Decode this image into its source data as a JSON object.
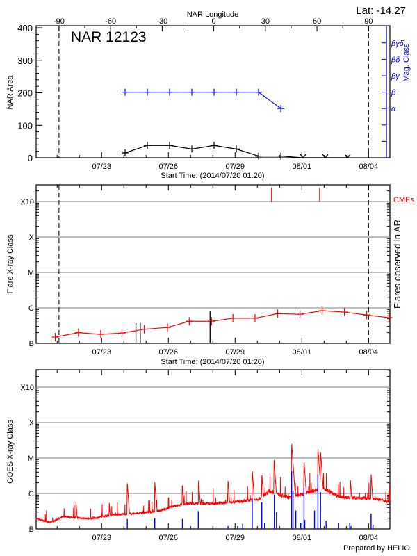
{
  "footer": {
    "prepared_by": "Prepared by HELIO"
  },
  "colors": {
    "area": "#000000",
    "mag_class": "#0000ff",
    "flare_line": "#ff0000",
    "goes_flux": "#ff0000",
    "flare_bars": "#0000ff",
    "cme": "#ff0000",
    "grid": "#999999",
    "flares_ar": "#000000"
  },
  "chart_data": [
    {
      "type": "line",
      "title": "NAR 12123",
      "lat_label": "Lat: -14.27",
      "top_axis": {
        "label": "NAR Longitude",
        "ticks": [
          "-90",
          "-60",
          "-30",
          "0",
          "30",
          "60",
          "90"
        ],
        "range": [
          -90,
          90
        ]
      },
      "limb_lines": {
        "east": "07/21 02:00",
        "west": "08/04 00:00",
        "style": "dashed"
      },
      "xlabel": "Start Time: (2014/07/20 01:20)",
      "xlim": [
        "07/20 01:20",
        "08/04 23:00"
      ],
      "xticks": [
        "07/23",
        "07/26",
        "07/29",
        "08/01",
        "08/04"
      ],
      "ylabel": "NAR Area",
      "ylim": [
        0,
        400
      ],
      "yticks": [
        "0",
        "100",
        "200",
        "300",
        "400"
      ],
      "y2label": "Mag. Class",
      "y2_levels": [
        "",
        "",
        "α",
        "β",
        "βγ",
        "βδ",
        "βγδ"
      ],
      "area": {
        "x": [
          "07/24 01:20",
          "07/25 01:20",
          "07/26 01:20",
          "07/27 01:20",
          "07/28 01:20",
          "07/29 01:20",
          "07/30 01:20",
          "07/31 01:20",
          "08/01 01:20",
          "08/02 01:20",
          "08/03 01:20"
        ],
        "y": [
          15,
          38,
          38,
          27,
          38,
          27,
          5,
          5,
          0,
          0,
          0
        ]
      },
      "mag_class": {
        "x": [
          "07/24 01:20",
          "07/25 01:20",
          "07/26 01:20",
          "07/27 01:20",
          "07/28 01:20",
          "07/29 01:20",
          "07/30 01:20",
          "07/31 01:20"
        ],
        "y": [
          "β",
          "β",
          "β",
          "β",
          "β",
          "β",
          "β",
          "α"
        ]
      }
    },
    {
      "type": "line",
      "xlabel": "Start Time: (2014/07/20 01:20)",
      "xlim": [
        "07/20 01:20",
        "08/04 23:00"
      ],
      "xticks": [
        "07/23",
        "07/26",
        "07/29",
        "08/01",
        "08/04"
      ],
      "ylabel": "Flare X-ray Class",
      "y2label": "Flares observed in AR",
      "cme_label": "CMEs",
      "yscale": "log",
      "ylim": [
        1e-07,
        0.0032
      ],
      "yticks": [
        "B",
        "C",
        "M",
        "X",
        "X10"
      ],
      "grid": true,
      "limb_lines": {
        "east": "07/21 02:00",
        "west": "08/04 00:00",
        "style": "dashed"
      },
      "flare_line": {
        "x": [
          "07/20 22:00",
          "07/21 23:00",
          "07/22 23:00",
          "07/23 22:00",
          "07/24 22:00",
          "07/25 23:00",
          "07/26 22:30",
          "07/27 22:30",
          "07/28 21:40",
          "07/29 21:30",
          "07/30 22:00",
          "07/31 22:00",
          "08/01 22:00",
          "08/02 22:00",
          "08/03 22:00",
          "08/04 22:00"
        ],
        "y": [
          1.5e-07,
          2e-07,
          1.8e-07,
          1.95e-07,
          2.5e-07,
          2.8e-07,
          4.2e-07,
          4.2e-07,
          5.1e-07,
          5.1e-07,
          6.9e-07,
          6.6e-07,
          8.3e-07,
          7.6e-07,
          6.3e-07,
          5.3e-07
        ]
      },
      "flares_in_ar": {
        "x": [
          "07/24 13:00",
          "07/24 17:40",
          "07/27 21:00"
        ],
        "y": [
          3.7e-07,
          3.8e-07,
          7.9e-07
        ]
      },
      "cmes": {
        "x": [
          "07/30 15:20",
          "08/01 19:10"
        ]
      }
    },
    {
      "type": "line",
      "ylabel": "GOES X-ray Class",
      "xlim": [
        "07/20 01:20",
        "08/04 23:00"
      ],
      "xticks": [
        "07/23",
        "07/26",
        "07/29",
        "08/01",
        "08/04"
      ],
      "yscale": "log",
      "ylim": [
        1e-07,
        0.0032
      ],
      "yticks": [
        "B",
        "C",
        "M",
        "X",
        "X10"
      ],
      "grid": true,
      "goes_background": {
        "x": [
          "07/20 01:20",
          "07/20 17:00",
          "07/21 07:00",
          "07/22 12:00",
          "07/23 14:00",
          "07/24 07:00",
          "07/25 12:30",
          "07/26 05:30",
          "07/26 22:30",
          "07/28 04:00",
          "07/29 08:00",
          "07/30 02:00",
          "07/30 13:00",
          "07/31 06:00",
          "07/31 12:00",
          "08/01 08:00",
          "08/01 23:00",
          "08/02 16:00",
          "08/03 03:30",
          "08/04 08:40",
          "08/04 23:00"
        ],
        "y": [
          1.9e-07,
          1.5e-07,
          2.2e-07,
          1.9e-07,
          2.5e-07,
          2.6e-07,
          3.1e-07,
          4.3e-07,
          5.1e-07,
          5.1e-07,
          5.9e-07,
          6.9e-07,
          1.15e-06,
          7.9e-07,
          7.4e-07,
          1.07e-06,
          1.38e-06,
          7.9e-07,
          7.4e-07,
          6.9e-07,
          5.6e-07
        ]
      },
      "goes_peaks": {
        "x": [
          "07/21 20:20",
          "07/23 08:10",
          "07/24 03:40",
          "07/25 09:20",
          "07/26 15:00",
          "07/27 08:30",
          "07/28 16:20",
          "07/29 18:30",
          "07/30 04:50",
          "07/30 18:00",
          "07/31 13:00",
          "08/01 02:20",
          "08/01 17:20",
          "08/01 20:10",
          "08/03 04:20",
          "08/04 02:40"
        ],
        "y": [
          6e-07,
          5.8e-07,
          2.1e-06,
          2.2e-06,
          1.9e-06,
          2.6e-06,
          2.5e-06,
          4.7e-06,
          3.7e-06,
          9.1e-06,
          2.6e-05,
          8.7e-06,
          2e-05,
          1.6e-05,
          2.5e-06,
          3.5e-06
        ]
      },
      "flare_bars": {
        "x": [
          "07/24 03:40",
          "07/25 09:20",
          "07/26 15:10",
          "07/27 08:20",
          "07/28 16:20",
          "07/29 02:50",
          "07/29 08:10",
          "07/29 18:30",
          "07/30 04:50",
          "07/30 07:50",
          "07/30 18:20",
          "07/30 20:40",
          "07/31 13:00",
          "07/31 14:30",
          "07/31 17:30",
          "07/31 22:40",
          "08/01 02:20",
          "08/01 03:10",
          "08/01 13:40",
          "08/01 17:20",
          "08/01 20:10",
          "08/02 02:10",
          "08/02 15:40",
          "08/03 03:40",
          "08/03 05:00",
          "08/04 02:40",
          "08/04 04:50"
        ],
        "y": [
          1.9e-07,
          2e-07,
          1.9e-07,
          3.2e-07,
          1.2e-07,
          1.2e-07,
          1.4e-07,
          7.4e-07,
          5.6e-07,
          1.5e-07,
          9.3e-07,
          3e-07,
          4.3e-06,
          1.2e-06,
          3.3e-07,
          1.5e-07,
          1.4e-06,
          1.8e-07,
          3.3e-07,
          3.5e-06,
          1.1e-06,
          1.7e-07,
          1.5e-07,
          1.5e-07,
          1.2e-07,
          2.7e-07,
          1.3e-07
        ]
      }
    }
  ]
}
